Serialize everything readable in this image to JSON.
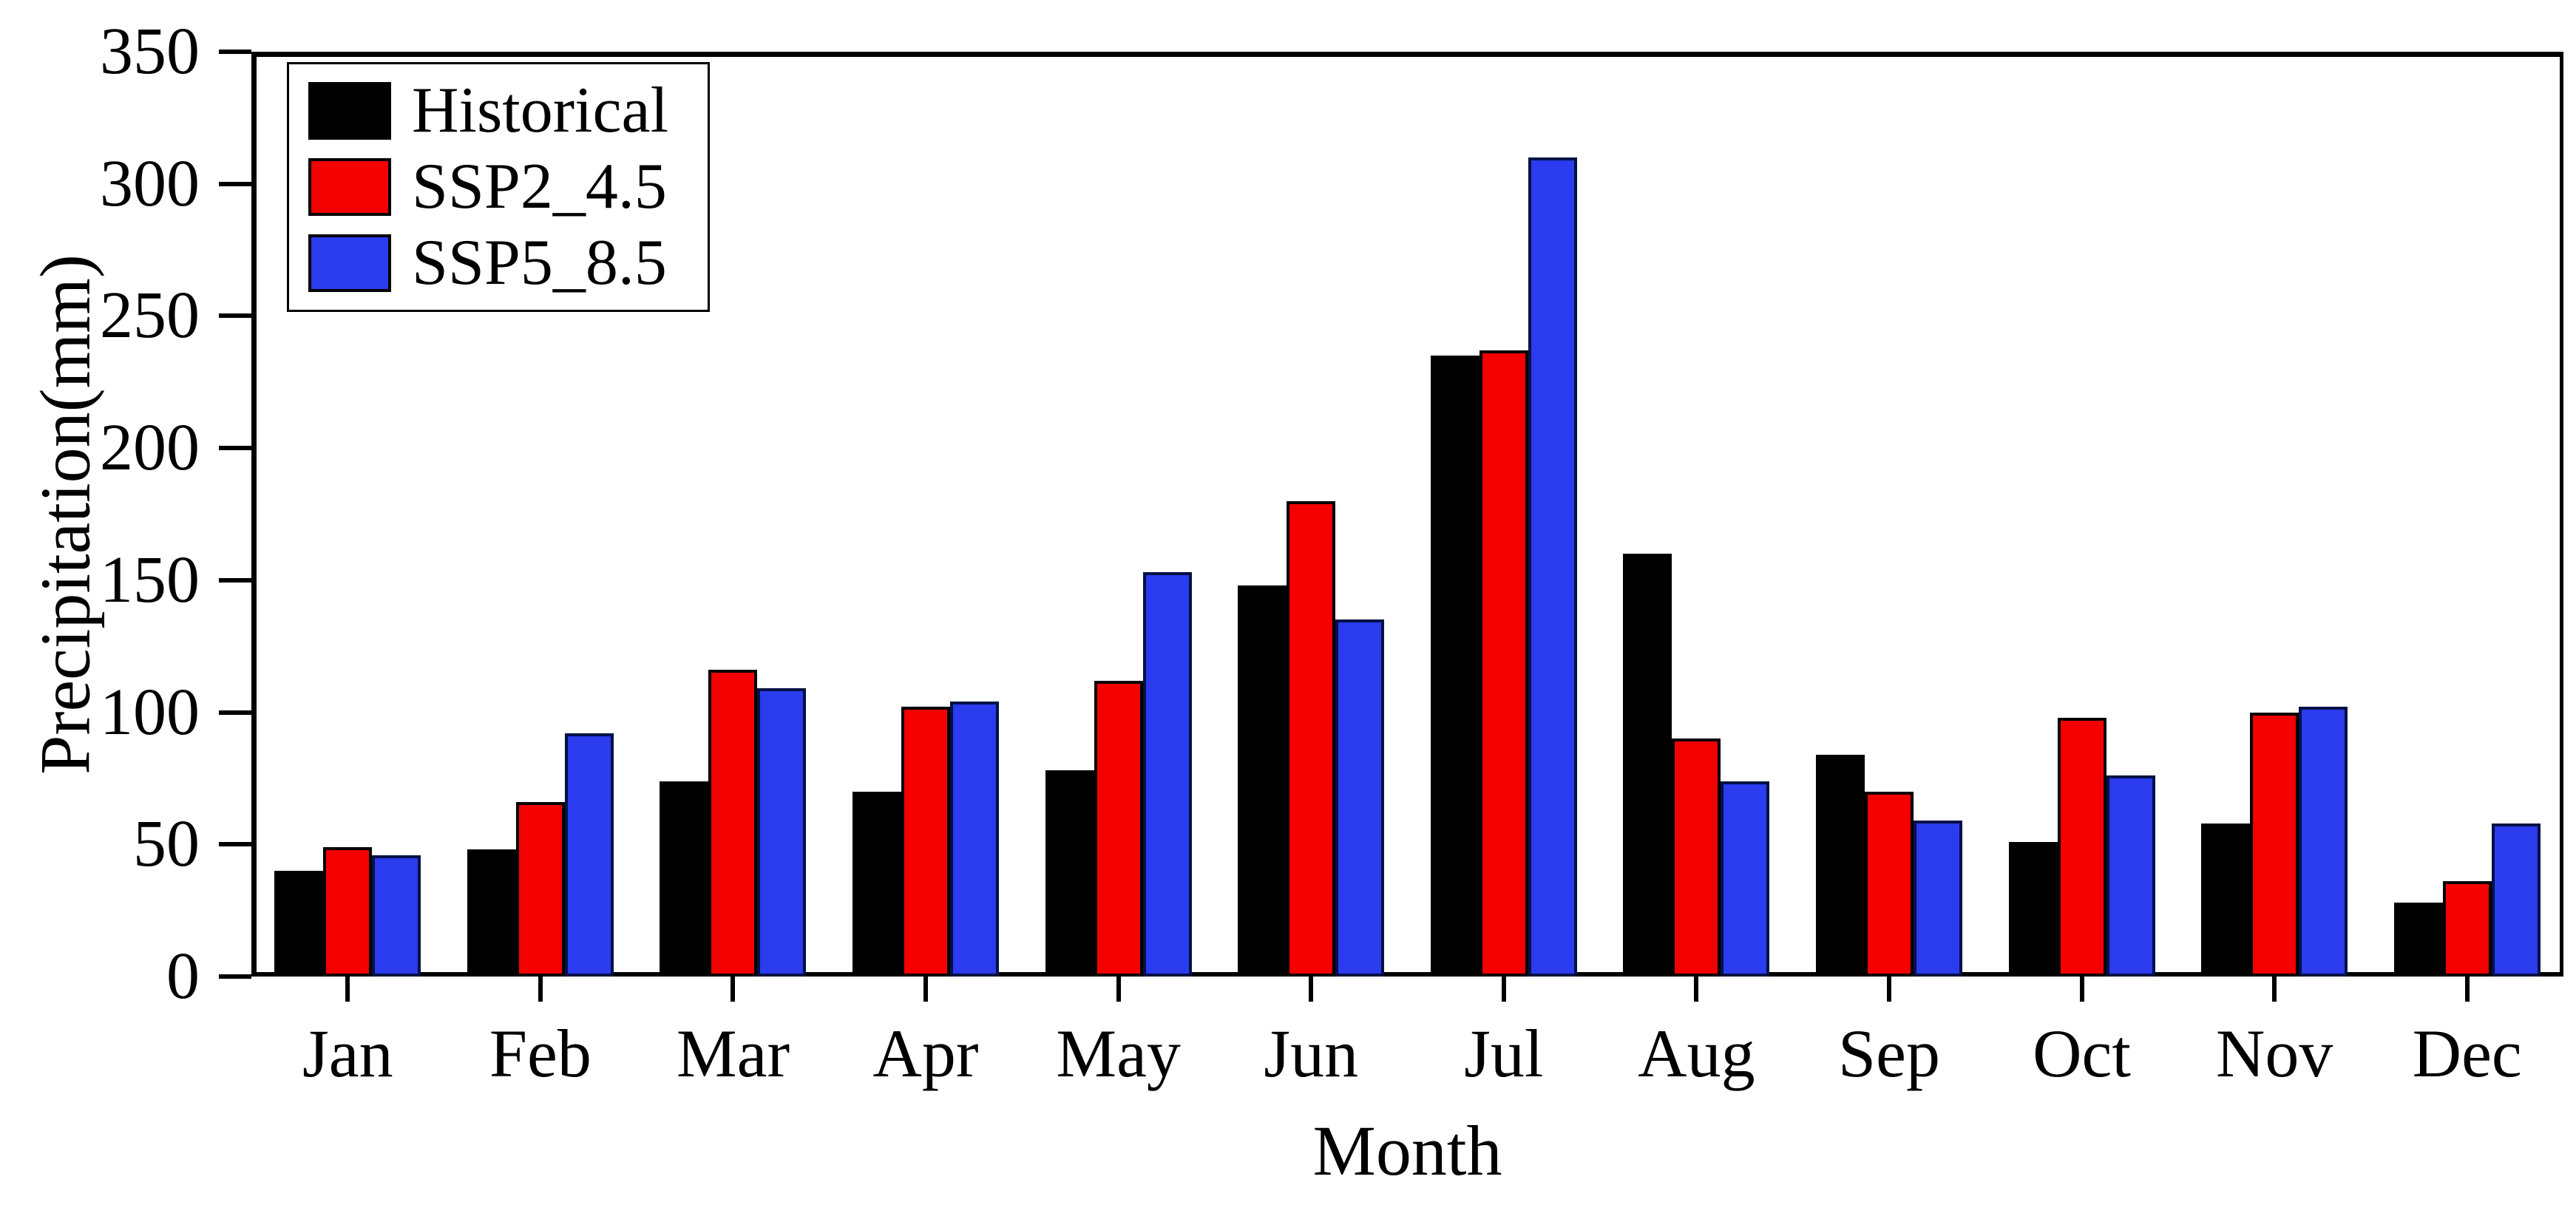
{
  "chart_data": {
    "type": "bar",
    "title": "",
    "xlabel": "Month",
    "ylabel": "Precipitation(mm)",
    "ylim": [
      0,
      350
    ],
    "yticks": [
      0,
      50,
      100,
      150,
      200,
      250,
      300,
      350
    ],
    "grid": false,
    "legend_position": "top-left",
    "categories": [
      "Jan",
      "Feb",
      "Mar",
      "Apr",
      "May",
      "Jun",
      "Jul",
      "Aug",
      "Sep",
      "Oct",
      "Nov",
      "Dec"
    ],
    "series": [
      {
        "name": "Historical",
        "color": "#000000",
        "values": [
          40,
          48,
          74,
          70,
          78,
          148,
          235,
          160,
          84,
          51,
          58,
          28
        ]
      },
      {
        "name": "SSP2_4.5",
        "color": "#f40000",
        "values": [
          49,
          66,
          116,
          102,
          112,
          180,
          237,
          90,
          70,
          98,
          100,
          36
        ]
      },
      {
        "name": "SSP5_8.5",
        "color": "#2b3bee",
        "values": [
          46,
          92,
          109,
          104,
          153,
          135,
          310,
          74,
          59,
          76,
          102,
          58
        ]
      }
    ]
  },
  "colors": {
    "background": "#ffffff",
    "axis": "#000000",
    "historical": "#000000",
    "ssp2_45": "#f40000",
    "ssp5_85": "#2b3bee"
  }
}
